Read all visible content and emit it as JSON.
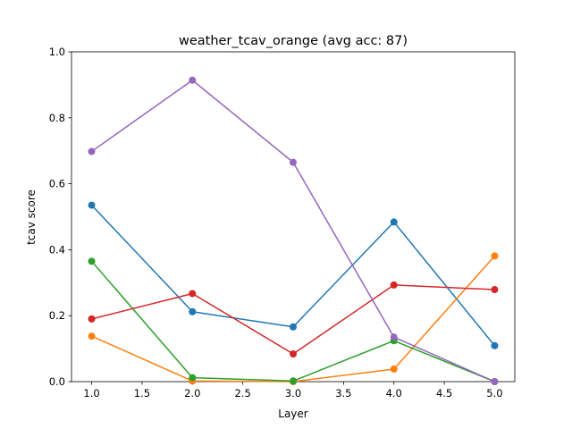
{
  "chart_data": {
    "type": "line",
    "title": "weather_tcav_orange (avg acc: 87)",
    "xlabel": "Layer",
    "ylabel": "tcav score",
    "xlim": [
      0.8,
      5.2
    ],
    "ylim": [
      0.0,
      1.0
    ],
    "xticks": [
      1.0,
      1.5,
      2.0,
      2.5,
      3.0,
      3.5,
      4.0,
      4.5,
      5.0
    ],
    "yticks": [
      0.0,
      0.2,
      0.4,
      0.6,
      0.8,
      1.0
    ],
    "xtick_labels": [
      "1.0",
      "1.5",
      "2.0",
      "2.5",
      "3.0",
      "3.5",
      "4.0",
      "4.5",
      "5.0"
    ],
    "ytick_labels": [
      "0.0",
      "0.2",
      "0.4",
      "0.6",
      "0.8",
      "1.0"
    ],
    "grid": false,
    "x": [
      1,
      2,
      3,
      4,
      5
    ],
    "series": [
      {
        "color": "#1f77b4",
        "values": [
          0.535,
          0.212,
          0.166,
          0.484,
          0.109
        ]
      },
      {
        "color": "#ff7f0e",
        "values": [
          0.138,
          0.002,
          0.0,
          0.038,
          0.381
        ]
      },
      {
        "color": "#2ca02c",
        "values": [
          0.365,
          0.012,
          0.002,
          0.124,
          0.0
        ]
      },
      {
        "color": "#d62728",
        "values": [
          0.19,
          0.267,
          0.084,
          0.293,
          0.279
        ]
      },
      {
        "color": "#9467bd",
        "values": [
          0.698,
          0.914,
          0.665,
          0.135,
          0.0
        ]
      }
    ]
  }
}
